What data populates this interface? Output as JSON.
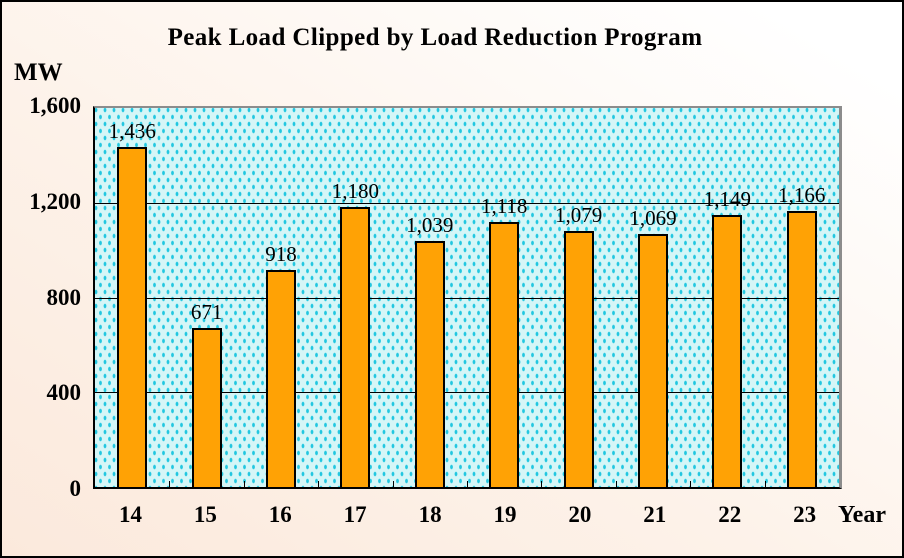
{
  "chart_data": {
    "type": "bar",
    "title": "Peak Load Clipped by Load Reduction Program",
    "ylabel": "MW",
    "xlabel": "Year",
    "categories": [
      "14",
      "15",
      "16",
      "17",
      "18",
      "19",
      "20",
      "21",
      "22",
      "23"
    ],
    "values": [
      1436,
      671,
      918,
      1180,
      1039,
      1118,
      1079,
      1069,
      1149,
      1166
    ],
    "bar_labels": [
      "1,436",
      "671",
      "918",
      "1,180",
      "1,039",
      "1,118",
      "1,079",
      "1,069",
      "1,149",
      "1,166"
    ],
    "ylim": [
      0,
      1600
    ],
    "ytick_step": 400,
    "ytick_labels": [
      "0",
      "400",
      "800",
      "1,200",
      "1,600"
    ],
    "grid": true,
    "legend": false,
    "colors": {
      "bar": "#FFA205",
      "bar_border": "#000000",
      "plot_background": "#D5F6F7",
      "plot_dots": "#22C7E0",
      "gridline": "#000000",
      "axis_line": "#000000",
      "plot_border": "#8C8C8C",
      "frame_border": "#000000",
      "text": "#000000"
    }
  }
}
